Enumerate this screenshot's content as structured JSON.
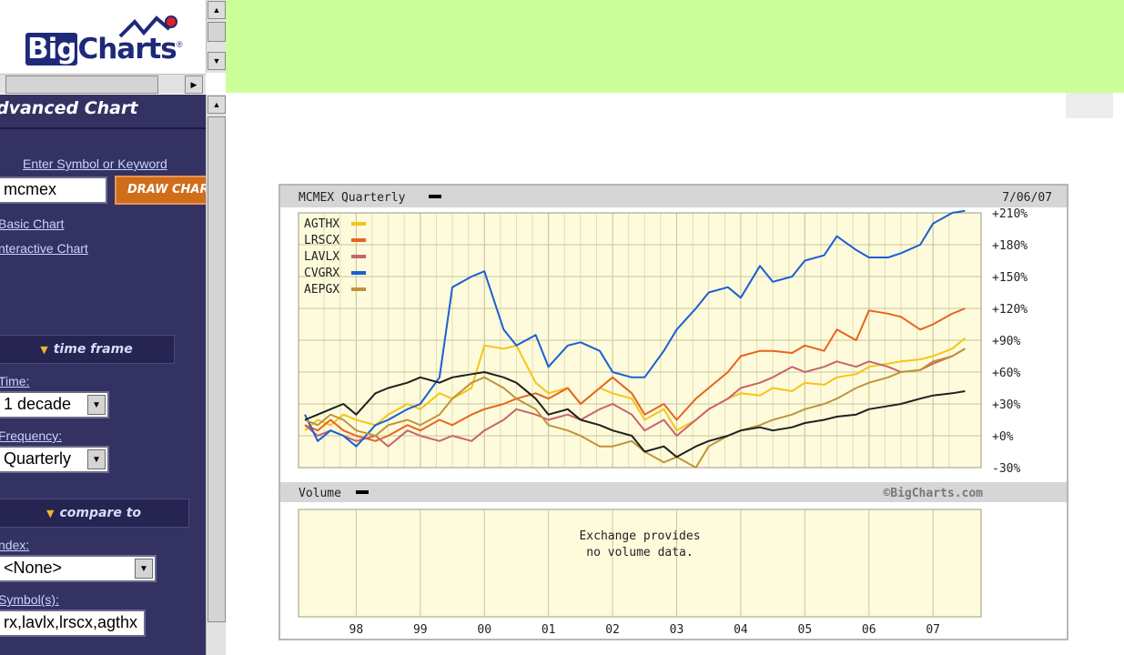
{
  "logo": {
    "word1": "Big",
    "word2": "Charts",
    "reg": "®"
  },
  "nav": {
    "title": "dvanced Chart",
    "symbol_label": "Enter Symbol or Keyword",
    "symbol_value": "mcmex",
    "draw_button": "DRAW CHART",
    "link_basic": "Basic Chart",
    "link_interactive": "nteractive Chart",
    "section_time_frame": "time frame",
    "time_label": "Time:",
    "time_value": "1 decade",
    "frequency_label": "Frequency:",
    "frequency_value": "Quarterly",
    "section_compare": "compare to",
    "index_label": "ndex:",
    "index_value": "<None>",
    "symbols_label": "Symbol(s):",
    "symbols_value": "rx,lavlx,lrscx,agthx"
  },
  "chart_data": {
    "type": "line",
    "title": "MCMEX Quarterly",
    "date": "7/06/07",
    "footer_credit": "©BigCharts.com",
    "volume_title": "Volume",
    "volume_message_1": "Exchange provides",
    "volume_message_2": "no volume data.",
    "x_tick_labels": [
      "98",
      "99",
      "00",
      "01",
      "02",
      "03",
      "04",
      "05",
      "06",
      "07"
    ],
    "y_tick_labels": [
      "+210%",
      "+180%",
      "+150%",
      "+120%",
      "+90%",
      "+60%",
      "+30%",
      "+0%",
      "-30%"
    ],
    "y_ticks": [
      210,
      180,
      150,
      120,
      90,
      60,
      30,
      0,
      -30
    ],
    "ylim": [
      -30,
      210
    ],
    "xlim": [
      1997.1,
      2007.75
    ],
    "colors": {
      "AGTHX": "#f5c518",
      "LRSCX": "#e8641e",
      "LAVLX": "#c8646e",
      "CVGRX": "#1a5fd6",
      "AEPGX": "#c0943a",
      "MCMEX": "#202020"
    },
    "series": [
      {
        "name": "AGTHX",
        "x": [
          1997.2,
          1997.4,
          1997.6,
          1997.8,
          1998.0,
          1998.3,
          1998.5,
          1998.8,
          1999.0,
          1999.3,
          1999.5,
          1999.8,
          2000.0,
          2000.3,
          2000.5,
          2000.8,
          2001.0,
          2001.3,
          2001.5,
          2001.8,
          2002.0,
          2002.3,
          2002.5,
          2002.8,
          2003.0,
          2003.3,
          2003.5,
          2003.8,
          2004.0,
          2004.3,
          2004.5,
          2004.8,
          2005.0,
          2005.3,
          2005.5,
          2005.8,
          2006.0,
          2006.3,
          2006.5,
          2006.8,
          2007.0,
          2007.3,
          2007.5
        ],
        "y": [
          5,
          15,
          10,
          20,
          15,
          10,
          20,
          30,
          25,
          40,
          35,
          45,
          85,
          82,
          85,
          50,
          40,
          45,
          30,
          45,
          40,
          35,
          15,
          25,
          5,
          15,
          25,
          35,
          40,
          38,
          45,
          42,
          50,
          48,
          55,
          58,
          65,
          68,
          70,
          72,
          75,
          82,
          92
        ]
      },
      {
        "name": "LRSCX",
        "x": [
          1997.2,
          1997.4,
          1997.6,
          1997.8,
          1998.0,
          1998.3,
          1998.5,
          1998.8,
          1999.0,
          1999.3,
          1999.5,
          1999.8,
          2000.0,
          2000.3,
          2000.5,
          2000.8,
          2001.0,
          2001.3,
          2001.5,
          2001.8,
          2002.0,
          2002.3,
          2002.5,
          2002.8,
          2003.0,
          2003.3,
          2003.5,
          2003.8,
          2004.0,
          2004.3,
          2004.5,
          2004.8,
          2005.0,
          2005.3,
          2005.5,
          2005.8,
          2006.0,
          2006.3,
          2006.5,
          2006.8,
          2007.0,
          2007.3,
          2007.5
        ],
        "y": [
          10,
          5,
          15,
          5,
          0,
          -5,
          0,
          10,
          5,
          15,
          10,
          20,
          25,
          30,
          35,
          40,
          35,
          45,
          30,
          45,
          55,
          40,
          20,
          30,
          15,
          35,
          45,
          60,
          75,
          80,
          80,
          78,
          85,
          80,
          100,
          90,
          118,
          115,
          112,
          100,
          105,
          115,
          120
        ]
      },
      {
        "name": "LAVLX",
        "x": [
          1997.2,
          1997.4,
          1997.6,
          1997.8,
          1998.0,
          1998.3,
          1998.5,
          1998.8,
          1999.0,
          1999.3,
          1999.5,
          1999.8,
          2000.0,
          2000.3,
          2000.5,
          2000.8,
          2001.0,
          2001.3,
          2001.5,
          2001.8,
          2002.0,
          2002.3,
          2002.5,
          2002.8,
          2003.0,
          2003.3,
          2003.5,
          2003.8,
          2004.0,
          2004.3,
          2004.5,
          2004.8,
          2005.0,
          2005.3,
          2005.5,
          2005.8,
          2006.0,
          2006.3,
          2006.5,
          2006.8,
          2007.0,
          2007.3,
          2007.5
        ],
        "y": [
          10,
          0,
          5,
          0,
          -5,
          0,
          -10,
          5,
          0,
          -5,
          0,
          -5,
          5,
          15,
          25,
          20,
          15,
          20,
          15,
          25,
          30,
          20,
          5,
          15,
          0,
          15,
          25,
          35,
          45,
          50,
          55,
          65,
          60,
          65,
          70,
          65,
          70,
          65,
          60,
          62,
          68,
          75,
          82
        ]
      },
      {
        "name": "CVGRX",
        "x": [
          1997.2,
          1997.4,
          1997.6,
          1997.8,
          1998.0,
          1998.3,
          1998.5,
          1998.8,
          1999.0,
          1999.3,
          1999.5,
          1999.8,
          2000.0,
          2000.3,
          2000.5,
          2000.8,
          2001.0,
          2001.3,
          2001.5,
          2001.8,
          2002.0,
          2002.3,
          2002.5,
          2002.8,
          2003.0,
          2003.3,
          2003.5,
          2003.8,
          2004.0,
          2004.3,
          2004.5,
          2004.8,
          2005.0,
          2005.3,
          2005.5,
          2005.8,
          2006.0,
          2006.3,
          2006.5,
          2006.8,
          2007.0,
          2007.3,
          2007.5
        ],
        "y": [
          20,
          -5,
          5,
          0,
          -10,
          10,
          15,
          25,
          30,
          55,
          140,
          150,
          155,
          100,
          85,
          95,
          65,
          85,
          88,
          80,
          60,
          55,
          55,
          80,
          100,
          120,
          135,
          140,
          130,
          160,
          145,
          150,
          165,
          170,
          188,
          175,
          168,
          168,
          172,
          180,
          200,
          210,
          212
        ]
      },
      {
        "name": "AEPGX",
        "x": [
          1997.2,
          1997.4,
          1997.6,
          1997.8,
          1998.0,
          1998.3,
          1998.5,
          1998.8,
          1999.0,
          1999.3,
          1999.5,
          1999.8,
          2000.0,
          2000.3,
          2000.5,
          2000.8,
          2001.0,
          2001.3,
          2001.5,
          2001.8,
          2002.0,
          2002.3,
          2002.5,
          2002.8,
          2003.0,
          2003.3,
          2003.5,
          2003.8,
          2004.0,
          2004.3,
          2004.5,
          2004.8,
          2005.0,
          2005.3,
          2005.5,
          2005.8,
          2006.0,
          2006.3,
          2006.5,
          2006.8,
          2007.0,
          2007.3,
          2007.5
        ],
        "y": [
          15,
          10,
          20,
          15,
          5,
          0,
          10,
          15,
          10,
          20,
          35,
          50,
          55,
          45,
          35,
          25,
          10,
          5,
          0,
          -10,
          -10,
          -5,
          -15,
          -25,
          -20,
          -30,
          -10,
          0,
          5,
          10,
          15,
          20,
          25,
          30,
          35,
          45,
          50,
          55,
          60,
          62,
          70,
          75,
          82
        ]
      },
      {
        "name": "MCMEX",
        "x": [
          1997.2,
          1997.4,
          1997.6,
          1997.8,
          1998.0,
          1998.3,
          1998.5,
          1998.8,
          1999.0,
          1999.3,
          1999.5,
          1999.8,
          2000.0,
          2000.3,
          2000.5,
          2000.8,
          2001.0,
          2001.3,
          2001.5,
          2001.8,
          2002.0,
          2002.3,
          2002.5,
          2002.8,
          2003.0,
          2003.3,
          2003.5,
          2003.8,
          2004.0,
          2004.3,
          2004.5,
          2004.8,
          2005.0,
          2005.3,
          2005.5,
          2005.8,
          2006.0,
          2006.3,
          2006.5,
          2006.8,
          2007.0,
          2007.3,
          2007.5
        ],
        "y": [
          15,
          20,
          25,
          30,
          20,
          40,
          45,
          50,
          55,
          50,
          55,
          58,
          60,
          55,
          50,
          35,
          20,
          25,
          15,
          10,
          5,
          0,
          -15,
          -10,
          -20,
          -10,
          -5,
          0,
          5,
          8,
          5,
          8,
          12,
          15,
          18,
          20,
          25,
          28,
          30,
          35,
          38,
          40,
          42
        ]
      }
    ]
  }
}
